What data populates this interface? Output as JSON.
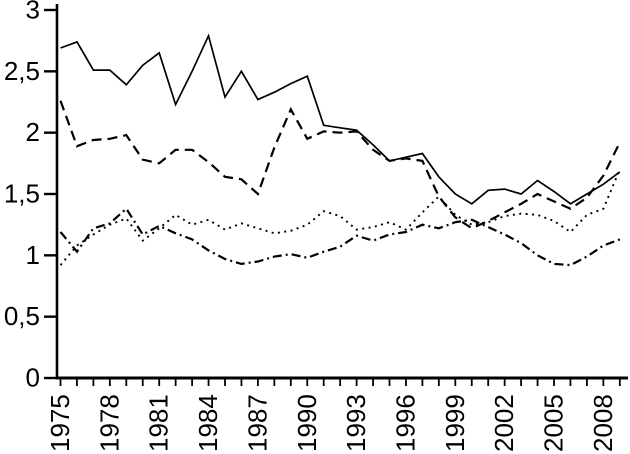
{
  "chart_data": {
    "type": "line",
    "title": "",
    "xlabel": "",
    "ylabel": "",
    "background": "#ffffff",
    "line_color": "#000000",
    "axis_color": "#000000",
    "grid": false,
    "legend": "none",
    "decimal_separator": ",",
    "ylim": [
      0,
      3
    ],
    "y_ticks": [
      {
        "value": 0,
        "label": "0"
      },
      {
        "value": 0.5,
        "label": "0,5"
      },
      {
        "value": 1,
        "label": "1"
      },
      {
        "value": 1.5,
        "label": "1,5"
      },
      {
        "value": 2,
        "label": "2"
      },
      {
        "value": 2.5,
        "label": "2,5"
      },
      {
        "value": 3,
        "label": "3"
      }
    ],
    "x": [
      1975,
      1976,
      1977,
      1978,
      1979,
      1980,
      1981,
      1982,
      1983,
      1984,
      1985,
      1986,
      1987,
      1988,
      1989,
      1990,
      1991,
      1992,
      1993,
      1994,
      1995,
      1996,
      1997,
      1998,
      1999,
      2000,
      2001,
      2002,
      2003,
      2004,
      2005,
      2006,
      2007,
      2008,
      2009
    ],
    "x_label_years": [
      1975,
      1978,
      1981,
      1984,
      1987,
      1990,
      1993,
      1996,
      1999,
      2002,
      2005,
      2008
    ],
    "series": [
      {
        "name": "solid",
        "line_style": "solid",
        "values": [
          2.69,
          2.74,
          2.51,
          2.51,
          2.39,
          2.55,
          2.65,
          2.23,
          2.5,
          2.79,
          2.29,
          2.5,
          2.27,
          2.33,
          2.4,
          2.46,
          2.06,
          2.04,
          2.02,
          1.9,
          1.77,
          1.8,
          1.83,
          1.64,
          1.5,
          1.42,
          1.53,
          1.54,
          1.5,
          1.61,
          1.52,
          1.42,
          1.5,
          1.58,
          1.68
        ]
      },
      {
        "name": "long-dash",
        "line_style": "long-dash",
        "values": [
          2.26,
          1.89,
          1.94,
          1.95,
          1.98,
          1.78,
          1.75,
          1.86,
          1.86,
          1.76,
          1.64,
          1.62,
          1.5,
          1.88,
          2.19,
          1.95,
          2.01,
          2.0,
          2.01,
          1.86,
          1.77,
          1.79,
          1.77,
          1.48,
          1.31,
          1.22,
          1.28,
          1.35,
          1.42,
          1.5,
          1.44,
          1.38,
          1.47,
          1.65,
          1.92
        ]
      },
      {
        "name": "dotted",
        "line_style": "dotted",
        "values": [
          0.92,
          1.08,
          1.17,
          1.25,
          1.3,
          1.12,
          1.22,
          1.33,
          1.25,
          1.29,
          1.21,
          1.26,
          1.22,
          1.18,
          1.2,
          1.25,
          1.36,
          1.32,
          1.21,
          1.23,
          1.27,
          1.21,
          1.35,
          1.48,
          1.33,
          1.25,
          1.27,
          1.32,
          1.34,
          1.33,
          1.28,
          1.19,
          1.33,
          1.38,
          1.7
        ]
      },
      {
        "name": "dash-dot",
        "line_style": "dash-dot",
        "values": [
          1.19,
          1.03,
          1.22,
          1.26,
          1.38,
          1.17,
          1.24,
          1.18,
          1.13,
          1.04,
          0.97,
          0.93,
          0.95,
          0.99,
          1.01,
          0.98,
          1.03,
          1.07,
          1.16,
          1.12,
          1.17,
          1.19,
          1.25,
          1.22,
          1.27,
          1.29,
          1.23,
          1.17,
          1.1,
          1.0,
          0.93,
          0.92,
          0.99,
          1.08,
          1.13
        ]
      }
    ]
  }
}
